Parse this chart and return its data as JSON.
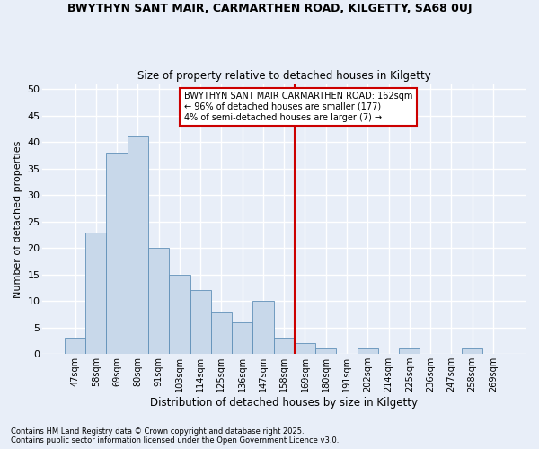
{
  "title1": "BWYTHYN SANT MAIR, CARMARTHEN ROAD, KILGETTY, SA68 0UJ",
  "title2": "Size of property relative to detached houses in Kilgetty",
  "xlabel": "Distribution of detached houses by size in Kilgetty",
  "ylabel": "Number of detached properties",
  "categories": [
    "47sqm",
    "58sqm",
    "69sqm",
    "80sqm",
    "91sqm",
    "103sqm",
    "114sqm",
    "125sqm",
    "136sqm",
    "147sqm",
    "158sqm",
    "169sqm",
    "180sqm",
    "191sqm",
    "202sqm",
    "214sqm",
    "225sqm",
    "236sqm",
    "247sqm",
    "258sqm",
    "269sqm"
  ],
  "values": [
    3,
    23,
    38,
    41,
    20,
    15,
    12,
    8,
    6,
    10,
    3,
    2,
    1,
    0,
    1,
    0,
    1,
    0,
    0,
    1,
    0
  ],
  "bar_color": "#c8d8ea",
  "bar_edgecolor": "#6090b8",
  "vline_x": 10.5,
  "annotation_text": "BWYTHYN SANT MAIR CARMARTHEN ROAD: 162sqm\n← 96% of detached houses are smaller (177)\n4% of semi-detached houses are larger (7) →",
  "annotation_box_color": "#ffffff",
  "annotation_border_color": "#cc0000",
  "vline_color": "#cc0000",
  "ylim": [
    0,
    51
  ],
  "yticks": [
    0,
    5,
    10,
    15,
    20,
    25,
    30,
    35,
    40,
    45,
    50
  ],
  "bg_color": "#e8eef8",
  "plot_bg_color": "#e8eef8",
  "grid_color": "#ffffff",
  "footer1": "Contains HM Land Registry data © Crown copyright and database right 2025.",
  "footer2": "Contains public sector information licensed under the Open Government Licence v3.0."
}
